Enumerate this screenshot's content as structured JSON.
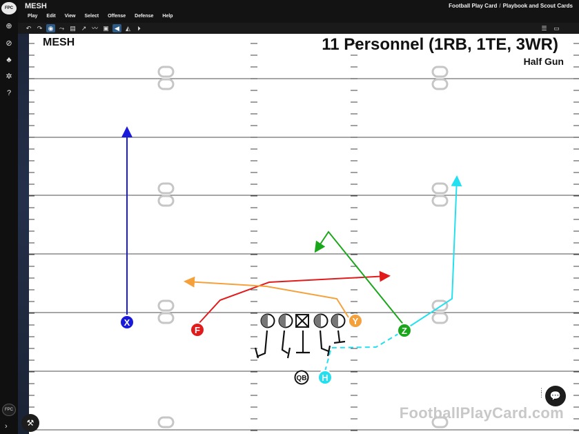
{
  "app": {
    "logo_text": "FPC",
    "title": "MESH",
    "breadcrumb": [
      "Football Play Card",
      "Playbook and Scout Cards"
    ]
  },
  "menu": [
    "Play",
    "Edit",
    "View",
    "Select",
    "Offense",
    "Defense",
    "Help"
  ],
  "rail_icons": [
    "plus-circle-icon",
    "football-icon",
    "team-icon",
    "settings-icon",
    "help-icon"
  ],
  "toolbar_icons": [
    "undo-icon",
    "redo-icon",
    "select-icon",
    "route-icon",
    "note-icon",
    "arrow-icon",
    "zigzag-icon",
    "save-icon",
    "triangle-left-icon",
    "triangle-right-icon",
    "play-icon"
  ],
  "toolbar_right_icons": [
    "list-icon",
    "window-icon"
  ],
  "card": {
    "play_name": "MESH",
    "personnel": "11 Personnel (1RB, 1TE, 3WR)",
    "formation": "Half Gun",
    "watermark": "FootballPlayCard.com"
  },
  "yard_numbers": [
    "0",
    "0"
  ],
  "players": [
    {
      "id": "X",
      "label": "X",
      "color": "#1a1adb"
    },
    {
      "id": "F",
      "label": "F",
      "color": "#e11b1b"
    },
    {
      "id": "Y",
      "label": "Y",
      "color": "#f5a13b"
    },
    {
      "id": "Z",
      "label": "Z",
      "color": "#1aa61a"
    },
    {
      "id": "H",
      "label": "H",
      "color": "#22e0f0"
    },
    {
      "id": "QB",
      "label": "QB",
      "color": "#ffffff"
    }
  ],
  "linemen": [
    "LT",
    "LG",
    "C",
    "RG",
    "RT"
  ],
  "colors": {
    "x_route": "#1a1adb",
    "f_route": "#e11b1b",
    "y_route": "#f5a13b",
    "z_route": "#1aa61a",
    "h_route": "#22e0f0"
  }
}
